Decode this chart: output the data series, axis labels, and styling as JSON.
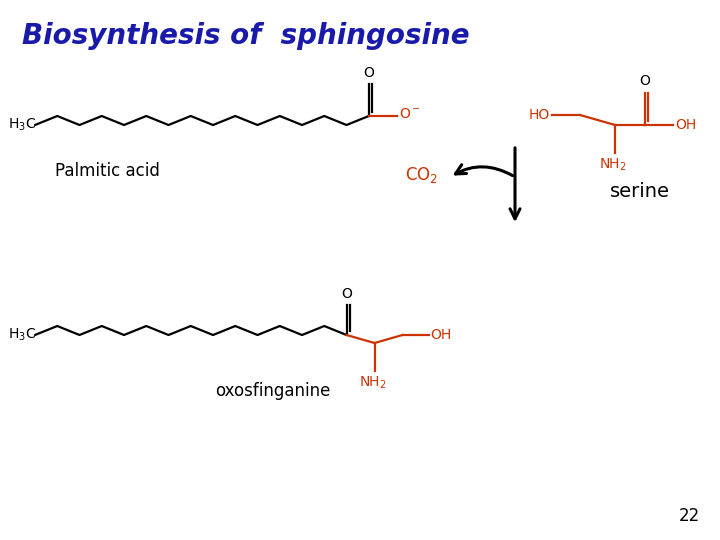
{
  "title": "Biosynthesis of  sphingosine",
  "title_color": "#1a1aaa",
  "title_fontsize": 20,
  "bg_color": "#ffffff",
  "label_palmitic": "Palmitic acid",
  "label_serine": "serine",
  "label_oxosfinganine": "oxosfinganine",
  "label_page": "22",
  "black_color": "#000000",
  "red_color": "#cc3300",
  "figsize": [
    7.2,
    5.4
  ],
  "dpi": 100
}
